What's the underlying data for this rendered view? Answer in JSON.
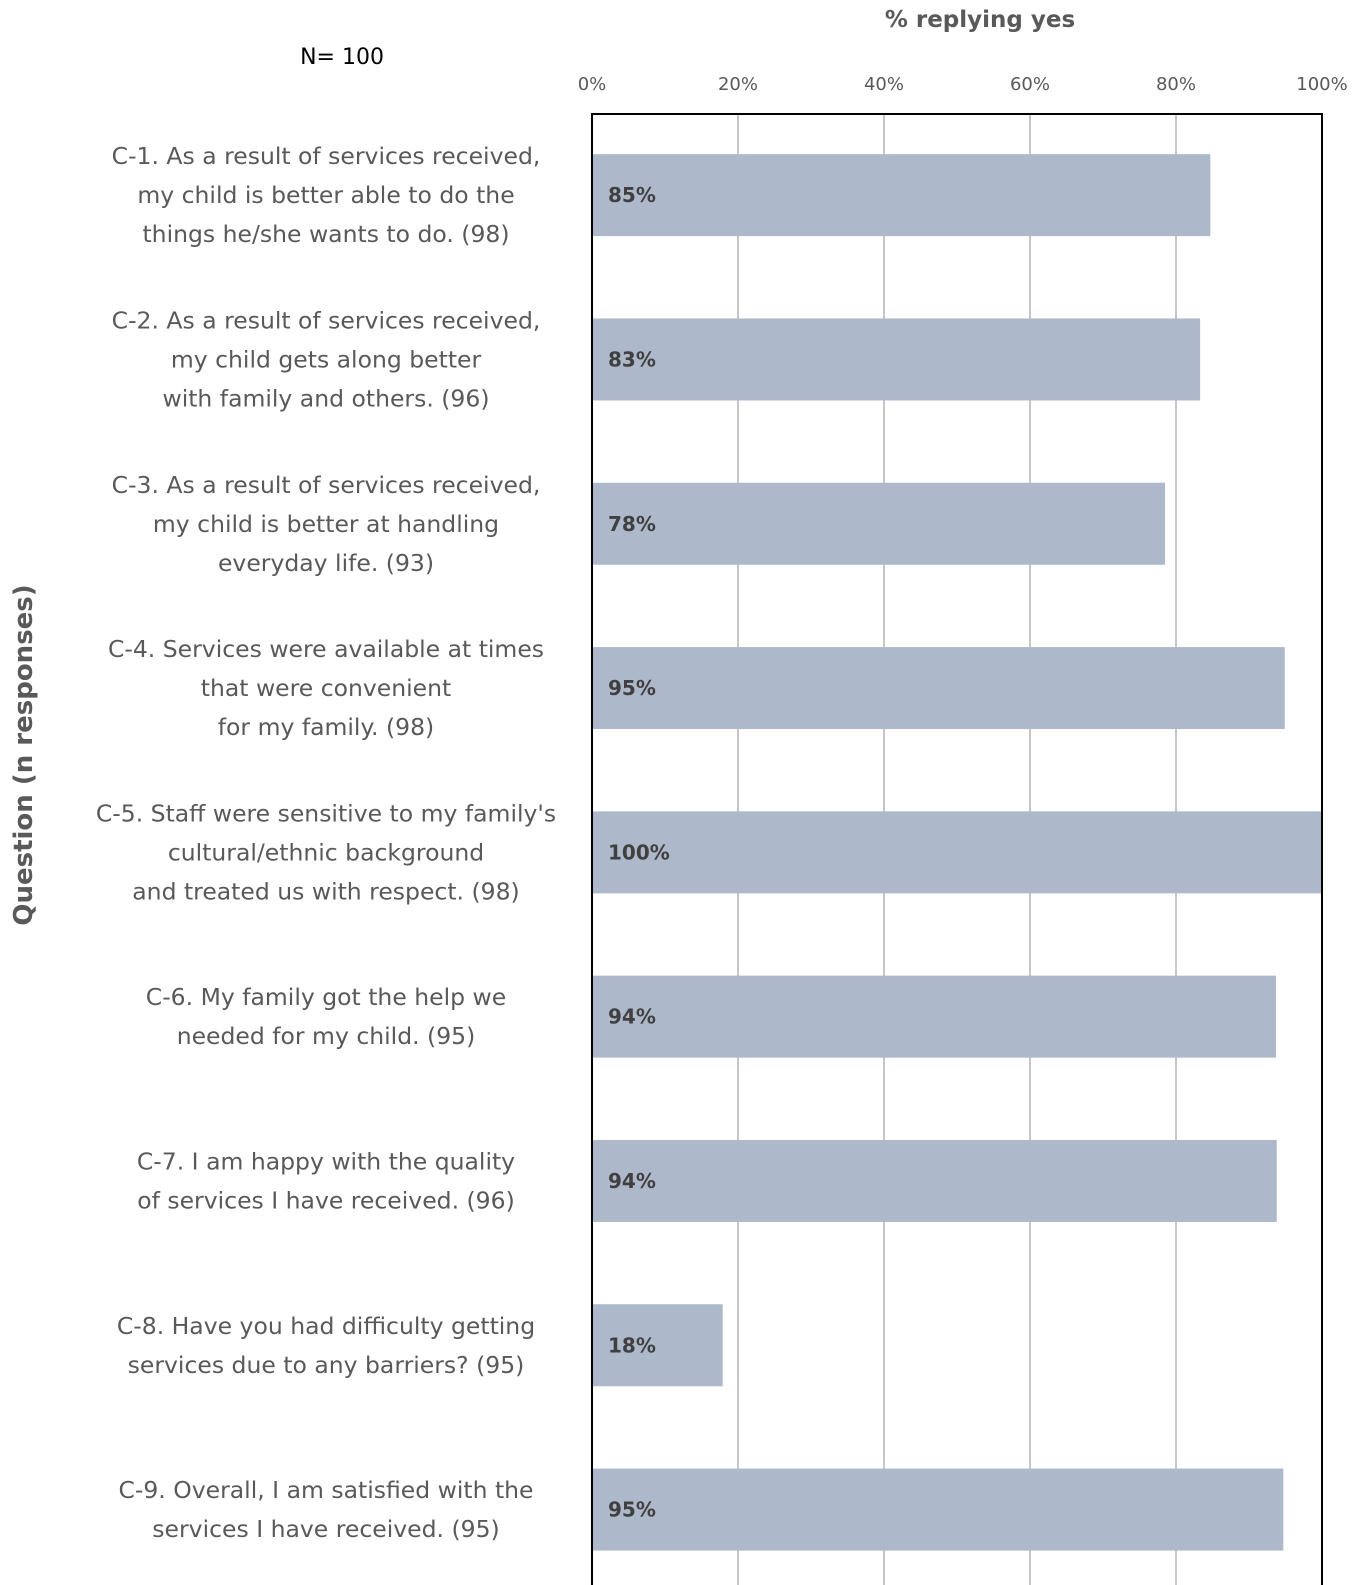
{
  "colors": {
    "bar": "#adb9ca",
    "gridline": "#8c8c8c",
    "plot_border": "#000000",
    "text": "#595959",
    "data_label": "#404040"
  },
  "chart_data": {
    "type": "bar",
    "orientation": "horizontal",
    "n_label": "N= 100",
    "xlabel": "% replying yes",
    "ylabel": "Question (n responses)",
    "xlim": [
      0,
      100
    ],
    "x_ticks": [
      "0%",
      "20%",
      "40%",
      "60%",
      "80%",
      "100%"
    ],
    "x_axis_position": "top",
    "grid": true,
    "legend": "none",
    "categories": [
      {
        "lines": [
          "C-1.  As a result of services received,",
          "my child is better able to do the",
          "things he/she wants to do. (98)"
        ]
      },
      {
        "lines": [
          "C-2.  As a result of services received,",
          "my child gets along better",
          "with family and others.  (96)"
        ]
      },
      {
        "lines": [
          "C-3.  As a result of services received,",
          "my child is better at handling",
          "everyday life.  (93)"
        ]
      },
      {
        "lines": [
          "C-4.  Services were available at times",
          "that were convenient",
          "for my family. (98)"
        ]
      },
      {
        "lines": [
          "C-5. Staff were sensitive to my family's",
          "cultural/ethnic background",
          "and treated us with respect.  (98)"
        ]
      },
      {
        "lines": [
          "C-6.  My family got the help we",
          "needed for my child. (95)"
        ]
      },
      {
        "lines": [
          "C-7.  I am happy with the quality",
          "of services I have received.  (96)"
        ]
      },
      {
        "lines": [
          "C-8. Have you had difficulty getting",
          "services due to any barriers? (95)"
        ]
      },
      {
        "lines": [
          "C-9.  Overall, I am satisfied with the",
          "services I have received. (95)"
        ]
      }
    ],
    "values": [
      84.7,
      83.3,
      78.5,
      94.9,
      100,
      93.7,
      93.8,
      17.9,
      94.7
    ],
    "data_labels": [
      "85%",
      "83%",
      "78%",
      "95%",
      "100%",
      "94%",
      "94%",
      "18%",
      "95%"
    ]
  }
}
